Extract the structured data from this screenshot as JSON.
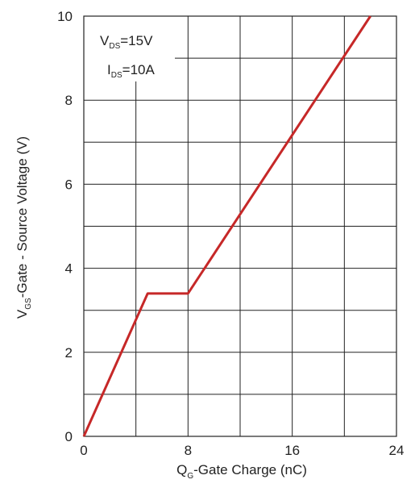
{
  "chart_data": {
    "type": "line",
    "xlabel_main": "Q",
    "xlabel_sub": "G",
    "xlabel_rest": "-Gate Charge (nC)",
    "ylabel_main": "V",
    "ylabel_sub": "GS",
    "ylabel_rest": "-Gate - Source Voltage (V)",
    "xlim": [
      0,
      24
    ],
    "ylim": [
      0,
      10
    ],
    "x_ticks": [
      0,
      8,
      16,
      24
    ],
    "y_ticks": [
      0,
      2,
      4,
      6,
      8,
      10
    ],
    "x_gridlines": [
      0,
      4,
      8,
      12,
      16,
      20,
      24
    ],
    "y_gridlines": [
      0,
      1,
      2,
      3,
      4,
      5,
      6,
      7,
      8,
      9,
      10
    ],
    "grid": true,
    "annotation": {
      "line1_main": "V",
      "line1_sub": "DS",
      "line1_rest": "=15V",
      "line2_main": "I",
      "line2_sub": "DS",
      "line2_rest": "=10A"
    },
    "series": [
      {
        "color": "#c62828",
        "x": [
          0,
          4.9,
          8.0,
          22.0
        ],
        "y": [
          0,
          3.4,
          3.4,
          10
        ]
      }
    ]
  }
}
